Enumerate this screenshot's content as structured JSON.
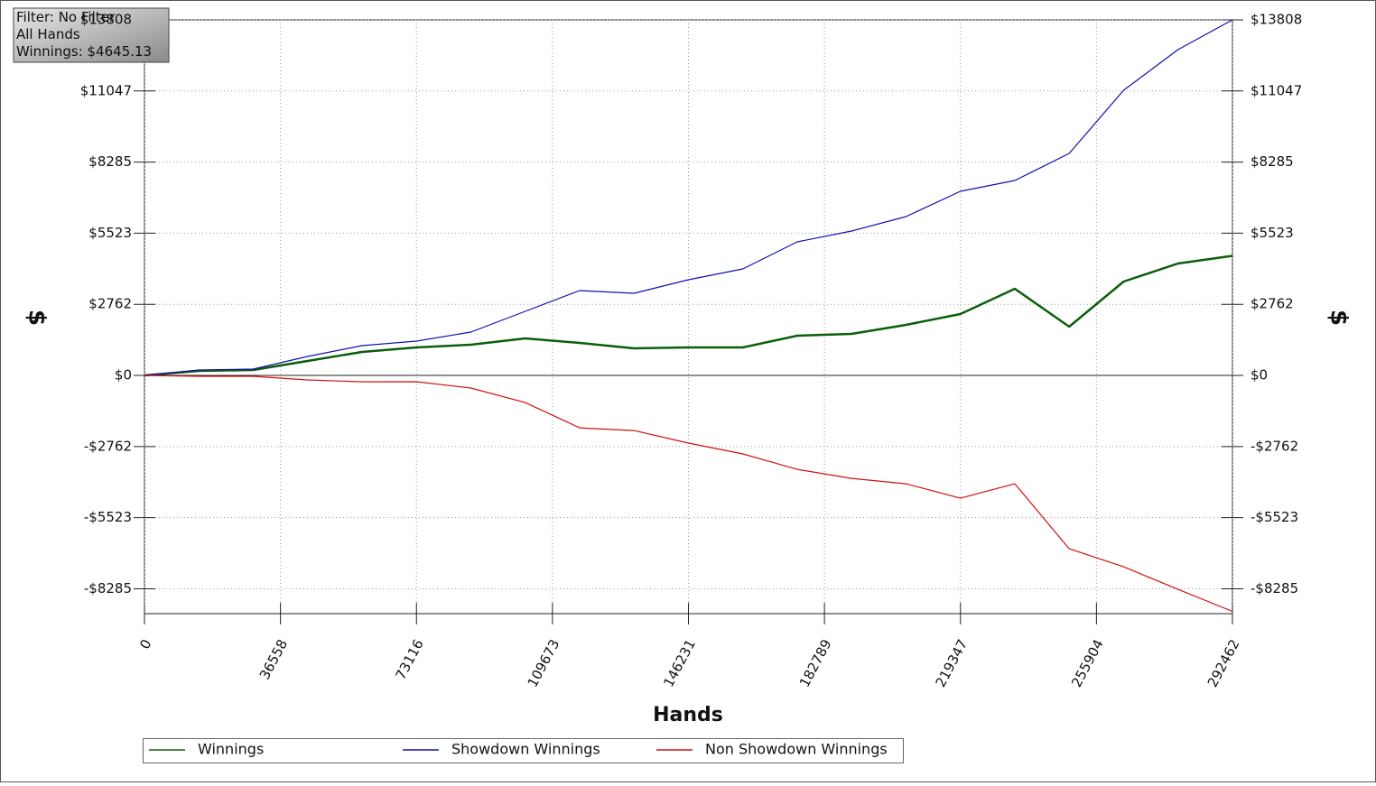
{
  "chart_data": {
    "type": "line",
    "info_box": [
      "Filter: No Filter",
      "All Hands",
      "Winnings: $4645.13"
    ],
    "x_label": "Hands",
    "y_label": "$",
    "y2_label": "$",
    "x": [
      0,
      14623,
      29246,
      43869,
      58492,
      73115,
      87738,
      102361,
      116984,
      131607,
      146230,
      160853,
      175476,
      190099,
      204722,
      219345,
      233968,
      248591,
      263214,
      277837,
      292462
    ],
    "series": [
      {
        "name": "Winnings",
        "color": "#0b5e0b",
        "width": 2.5,
        "values": [
          0,
          175,
          210,
          561,
          911,
          1087,
          1192,
          1437,
          1262,
          1051,
          1087,
          1087,
          1542,
          1612,
          1963,
          2383,
          3365,
          1893,
          3645,
          4346,
          4645.13
        ]
      },
      {
        "name": "Showdown Winnings",
        "color": "#1010b0",
        "width": 1.2,
        "values": [
          0,
          210,
          245,
          736,
          1157,
          1332,
          1682,
          2489,
          3295,
          3190,
          3715,
          4136,
          5187,
          5608,
          6169,
          7150,
          7571,
          8622,
          11076,
          12653,
          13808
        ]
      },
      {
        "name": "Non Showdown Winnings",
        "color": "#d01010",
        "width": 1.2,
        "values": [
          0,
          -35,
          -35,
          -175,
          -246,
          -245,
          -490,
          -1052,
          -2033,
          -2139,
          -2628,
          -3049,
          -3645,
          -3996,
          -4206,
          -4767,
          -4206,
          -6729,
          -7431,
          -8307,
          -9163
        ]
      }
    ],
    "xlim": [
      0,
      292462
    ],
    "xticks": [
      0,
      36558,
      73116,
      109673,
      146231,
      182789,
      219347,
      255904,
      292462
    ],
    "ylim": [
      -9250,
      13808
    ],
    "yticks": [
      {
        "value": -8285,
        "label": "-$8285"
      },
      {
        "value": -5523,
        "label": "-$5523"
      },
      {
        "value": -2762,
        "label": "-$2762"
      },
      {
        "value": 0,
        "label": "$0"
      },
      {
        "value": 2762,
        "label": "$2762"
      },
      {
        "value": 5523,
        "label": "$5523"
      },
      {
        "value": 8285,
        "label": "$8285"
      },
      {
        "value": 11047,
        "label": "$11047"
      },
      {
        "value": 13808,
        "label": "$13808"
      }
    ],
    "grid": true
  }
}
